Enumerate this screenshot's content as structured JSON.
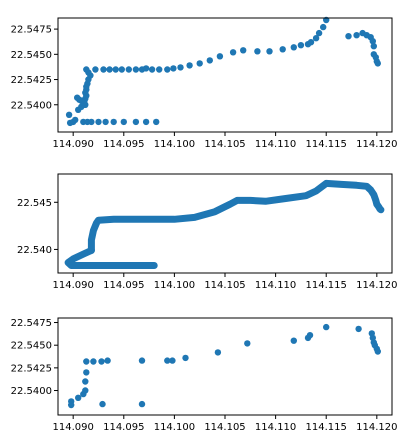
{
  "chart_data": [
    {
      "type": "scatter",
      "title": "",
      "xlabel": "",
      "ylabel": "",
      "grid": false,
      "color": "#1f77b4",
      "xlim": [
        114.0885,
        114.1215
      ],
      "ylim": [
        22.5373,
        22.5486
      ],
      "x_ticks": [
        114.09,
        114.095,
        114.1,
        114.105,
        114.11,
        114.115,
        114.12
      ],
      "x_tick_labels": [
        "114.090",
        "114.095",
        "114.100",
        "114.105",
        "114.110",
        "114.115",
        "114.120"
      ],
      "y_ticks": [
        22.54,
        22.5425,
        22.545,
        22.5475
      ],
      "y_tick_labels": [
        "22.5400",
        "22.5425",
        "22.5450",
        "22.5475"
      ],
      "x": [
        114.0897,
        114.09,
        114.0902,
        114.0896,
        114.0905,
        114.0908,
        114.0912,
        114.0911,
        114.0912,
        114.0913,
        114.0912,
        114.0913,
        114.0913,
        114.0914,
        114.0915,
        114.0917,
        114.0915,
        114.0913,
        114.0911,
        114.091,
        114.0908,
        114.0906,
        114.0904,
        114.091,
        114.0914,
        114.0918,
        114.0925,
        114.0932,
        114.094,
        114.095,
        114.0962,
        114.0972,
        114.0982,
        114.0922,
        114.093,
        114.0936,
        114.0942,
        114.0948,
        114.0955,
        114.0962,
        114.0968,
        114.0972,
        114.0978,
        114.0985,
        114.0993,
        114.0999,
        114.1006,
        114.1015,
        114.1025,
        114.1035,
        114.1045,
        114.1058,
        114.1068,
        114.1082,
        114.1094,
        114.1107,
        114.1118,
        114.1125,
        114.1132,
        114.1135,
        114.114,
        114.1143,
        114.1147,
        114.115,
        114.1172,
        114.118,
        114.1186,
        114.119,
        114.1194,
        114.1196,
        114.1197,
        114.1197,
        114.1199,
        114.12,
        114.1201
      ],
      "y": [
        22.5382,
        22.5383,
        22.5385,
        22.539,
        22.5395,
        22.5398,
        22.54,
        22.5403,
        22.5406,
        22.5409,
        22.5412,
        22.5415,
        22.5418,
        22.5421,
        22.5425,
        22.5429,
        22.5432,
        22.5435,
        22.54,
        22.5402,
        22.5404,
        22.5405,
        22.5407,
        22.5383,
        22.5383,
        22.5383,
        22.5383,
        22.5383,
        22.5383,
        22.5383,
        22.5383,
        22.5383,
        22.5383,
        22.5435,
        22.5435,
        22.5435,
        22.5435,
        22.5435,
        22.5435,
        22.5435,
        22.5435,
        22.5436,
        22.5435,
        22.5435,
        22.5435,
        22.5436,
        22.5437,
        22.5439,
        22.5441,
        22.5444,
        22.5448,
        22.5452,
        22.5454,
        22.5453,
        22.5453,
        22.5455,
        22.5457,
        22.5459,
        22.546,
        22.5462,
        22.5466,
        22.5471,
        22.5477,
        22.5484,
        22.5468,
        22.5469,
        22.5471,
        22.5469,
        22.5467,
        22.5463,
        22.5458,
        22.545,
        22.5447,
        22.5443,
        22.5441
      ]
    },
    {
      "type": "scatter",
      "title": "",
      "xlabel": "",
      "ylabel": "",
      "grid": false,
      "color": "#1f77b4",
      "xlim": [
        114.0885,
        114.1215
      ],
      "ylim": [
        22.5375,
        22.548
      ],
      "x_ticks": [
        114.09,
        114.095,
        114.1,
        114.105,
        114.11,
        114.115,
        114.12
      ],
      "x_tick_labels": [
        "114.090",
        "114.095",
        "114.100",
        "114.105",
        "114.110",
        "114.115",
        "114.120"
      ],
      "y_ticks": [
        22.54,
        22.545
      ],
      "y_tick_labels": [
        "22.540",
        "22.545"
      ],
      "polylines": [
        {
          "name": "",
          "x": [
            114.098,
            114.096,
            114.094,
            114.092,
            114.0905,
            114.0898,
            114.0895,
            114.09,
            114.091,
            114.0918
          ],
          "y": [
            22.5383,
            22.5383,
            22.5383,
            22.5383,
            22.5383,
            22.5383,
            22.5386,
            22.539,
            22.5395,
            22.5399
          ]
        },
        {
          "name": "",
          "x": [
            114.0918,
            114.0918,
            114.092,
            114.0923,
            114.0925,
            114.094,
            114.096,
            114.098,
            114.1,
            114.102,
            114.104,
            114.1055,
            114.1062,
            114.1075,
            114.109,
            114.111,
            114.113,
            114.114,
            114.115,
            114.1165,
            114.118,
            114.119,
            114.1194,
            114.1197,
            114.1199,
            114.12,
            114.1202,
            114.1203,
            114.1204
          ],
          "y": [
            22.5399,
            22.541,
            22.542,
            22.5428,
            22.5431,
            22.5432,
            22.5432,
            22.5432,
            22.5432,
            22.5434,
            22.544,
            22.5448,
            22.5452,
            22.5452,
            22.5451,
            22.5454,
            22.5457,
            22.5462,
            22.547,
            22.5469,
            22.5468,
            22.5467,
            22.5463,
            22.5458,
            22.5452,
            22.5448,
            22.5445,
            22.5443,
            22.5442
          ]
        }
      ]
    },
    {
      "type": "scatter",
      "title": "",
      "xlabel": "",
      "ylabel": "",
      "grid": false,
      "color": "#1f77b4",
      "xlim": [
        114.0885,
        114.1215
      ],
      "ylim": [
        22.5373,
        22.548
      ],
      "x_ticks": [
        114.09,
        114.095,
        114.1,
        114.105,
        114.11,
        114.115,
        114.12
      ],
      "x_tick_labels": [
        "114.090",
        "114.095",
        "114.100",
        "114.105",
        "114.110",
        "114.115",
        "114.120"
      ],
      "y_ticks": [
        22.54,
        22.5425,
        22.545,
        22.5475
      ],
      "y_tick_labels": [
        "22.5400",
        "22.5425",
        "22.5450",
        "22.5475"
      ],
      "x": [
        114.0898,
        114.0898,
        114.0905,
        114.091,
        114.0912,
        114.0912,
        114.0913,
        114.0913,
        114.092,
        114.0928,
        114.0934,
        114.0929,
        114.0968,
        114.0968,
        114.0993,
        114.0998,
        114.1011,
        114.1043,
        114.1072,
        114.1118,
        114.1132,
        114.1134,
        114.115,
        114.1182,
        114.1195,
        114.1196,
        114.1197,
        114.1198,
        114.12,
        114.1201
      ],
      "y": [
        22.5388,
        22.5384,
        22.5392,
        22.5396,
        22.54,
        22.541,
        22.542,
        22.5432,
        22.5432,
        22.5432,
        22.5433,
        22.5385,
        22.5385,
        22.5433,
        22.5433,
        22.5433,
        22.5436,
        22.5442,
        22.5452,
        22.5455,
        22.5458,
        22.5461,
        22.547,
        22.5468,
        22.5463,
        22.5458,
        22.5453,
        22.545,
        22.5446,
        22.5443
      ]
    }
  ]
}
